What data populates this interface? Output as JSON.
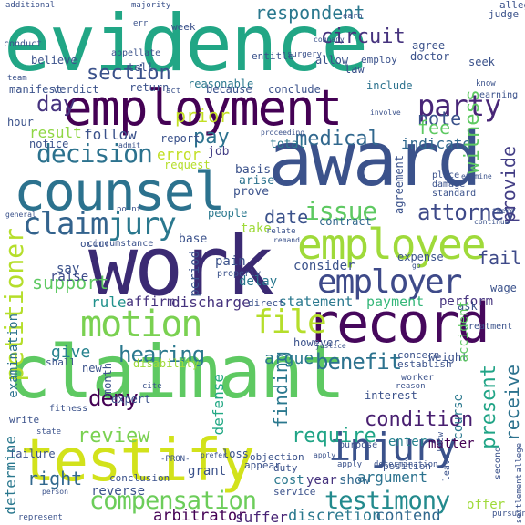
{
  "palette": {
    "purple": "#440154",
    "indigo": "#3b528b",
    "blue": "#31688e",
    "teal": "#21918c",
    "green": "#35b779",
    "lime": "#5ec962",
    "yellow": "#c8e020",
    "bright_yellow": "#fde725"
  },
  "words": [
    {
      "text": "evidence",
      "color": "#21a685"
    },
    {
      "text": "claimant",
      "color": "#5ec962"
    },
    {
      "text": "work",
      "color": "#3b2a73"
    },
    {
      "text": "award",
      "color": "#3b528b"
    },
    {
      "text": "employment",
      "color": "#440154"
    },
    {
      "text": "counsel",
      "color": "#2c728e"
    },
    {
      "text": "testify",
      "color": "#d2e21b"
    },
    {
      "text": "record",
      "color": "#46085c"
    },
    {
      "text": "employee",
      "color": "#9fda3a"
    },
    {
      "text": "employer",
      "color": "#3e4a89"
    },
    {
      "text": "injury",
      "color": "#3b528b"
    },
    {
      "text": "motion",
      "color": "#7ad151"
    },
    {
      "text": "claim",
      "color": "#33638d"
    },
    {
      "text": "jury",
      "color": "#2a788e"
    },
    {
      "text": "file",
      "color": "#b5de2b"
    },
    {
      "text": "party",
      "color": "#482677"
    },
    {
      "text": "decision",
      "color": "#2c728e"
    },
    {
      "text": "compensation",
      "color": "#6ccd5a"
    },
    {
      "text": "testimony",
      "color": "#238a8d"
    },
    {
      "text": "issue",
      "color": "#5ec962"
    },
    {
      "text": "attorney",
      "color": "#3e4a89"
    },
    {
      "text": "witness",
      "color": "#5ec962"
    },
    {
      "text": "petitioner",
      "color": "#b5de2b"
    },
    {
      "text": "support",
      "color": "#5ec962"
    },
    {
      "text": "hearing",
      "color": "#2a788e"
    },
    {
      "text": "benefit",
      "color": "#2c728e"
    },
    {
      "text": "deny",
      "color": "#440154"
    },
    {
      "text": "finding",
      "color": "#2a788e"
    },
    {
      "text": "present",
      "color": "#20a486"
    },
    {
      "text": "receive",
      "color": "#2c728e"
    },
    {
      "text": "review",
      "color": "#7ad151"
    },
    {
      "text": "condition",
      "color": "#481f70"
    },
    {
      "text": "require",
      "color": "#20a486"
    },
    {
      "text": "medical",
      "color": "#31688e"
    },
    {
      "text": "day",
      "color": "#46337e"
    },
    {
      "text": "section",
      "color": "#3b528b"
    },
    {
      "text": "circuit",
      "color": "#46337e"
    },
    {
      "text": "respondent",
      "color": "#2a788e"
    },
    {
      "text": "prior",
      "color": "#c2df23"
    },
    {
      "text": "note",
      "color": "#3b528b"
    },
    {
      "text": "fee",
      "color": "#5ec962"
    },
    {
      "text": "pay",
      "color": "#2c728e"
    },
    {
      "text": "provide",
      "color": "#433e85"
    },
    {
      "text": "date",
      "color": "#3b528b"
    },
    {
      "text": "fail",
      "color": "#3e4a89"
    },
    {
      "text": "right",
      "color": "#31688e"
    },
    {
      "text": "determine",
      "color": "#2a788e"
    },
    {
      "text": "rule",
      "color": "#21918c"
    },
    {
      "text": "give",
      "color": "#26828e"
    },
    {
      "text": "argue",
      "color": "#2a788e"
    },
    {
      "text": "arbitrator",
      "color": "#440154"
    },
    {
      "text": "suffer",
      "color": "#482475"
    },
    {
      "text": "discretion",
      "color": "#2a788e"
    },
    {
      "text": "contend",
      "color": "#31688e"
    },
    {
      "text": "result",
      "color": "#8fd744"
    },
    {
      "text": "follow",
      "color": "#3b528b"
    },
    {
      "text": "error",
      "color": "#c2df23"
    },
    {
      "text": "indicate",
      "color": "#31688e"
    },
    {
      "text": "discharge",
      "color": "#46337e"
    },
    {
      "text": "statement",
      "color": "#2a788e"
    },
    {
      "text": "payment",
      "color": "#35b779"
    },
    {
      "text": "argument",
      "color": "#2c728e"
    },
    {
      "text": "defense",
      "color": "#22a884"
    },
    {
      "text": "reverse",
      "color": "#3b528b"
    },
    {
      "text": "grant",
      "color": "#3b528b"
    },
    {
      "text": "cost",
      "color": "#2a788e"
    },
    {
      "text": "year",
      "color": "#46337e"
    },
    {
      "text": "show",
      "color": "#31688e"
    },
    {
      "text": "matter",
      "color": "#440154"
    },
    {
      "text": "enter",
      "color": "#26828e"
    },
    {
      "text": "course",
      "color": "#2a788e"
    },
    {
      "text": "offer",
      "color": "#9fda3a"
    },
    {
      "text": "consider",
      "color": "#3b528b"
    },
    {
      "text": "perform",
      "color": "#46337e"
    },
    {
      "text": "contract",
      "color": "#31688e"
    },
    {
      "text": "take",
      "color": "#9fda3a"
    },
    {
      "text": "period",
      "color": "#3b528b"
    },
    {
      "text": "pain",
      "color": "#3b528b"
    },
    {
      "text": "delay",
      "color": "#2a788e"
    },
    {
      "text": "affirm",
      "color": "#46337e"
    },
    {
      "text": "examination",
      "color": "#2c728e"
    },
    {
      "text": "raise",
      "color": "#3e4a89"
    },
    {
      "text": "say",
      "color": "#3b528b"
    },
    {
      "text": "base",
      "color": "#3b528b"
    },
    {
      "text": "people",
      "color": "#2a788e"
    },
    {
      "text": "basis",
      "color": "#3b528b"
    },
    {
      "text": "arise",
      "color": "#2c728e"
    },
    {
      "text": "prove",
      "color": "#3b528b"
    },
    {
      "text": "job",
      "color": "#433e85"
    },
    {
      "text": "report",
      "color": "#3b528b"
    },
    {
      "text": "total",
      "color": "#2a788e"
    },
    {
      "text": "request",
      "color": "#b5de2b"
    },
    {
      "text": "notice",
      "color": "#3b528b"
    },
    {
      "text": "hour",
      "color": "#3b528b"
    },
    {
      "text": "manifest",
      "color": "#3b528b"
    },
    {
      "text": "verdict",
      "color": "#3b528b"
    },
    {
      "text": "return",
      "color": "#3b528b"
    },
    {
      "text": "reasonable",
      "color": "#2a788e"
    },
    {
      "text": "because",
      "color": "#3b528b"
    },
    {
      "text": "conclude",
      "color": "#3b528b"
    },
    {
      "text": "include",
      "color": "#2c728e"
    },
    {
      "text": "tell",
      "color": "#3b528b"
    },
    {
      "text": "believe",
      "color": "#3b528b"
    },
    {
      "text": "conduct",
      "color": "#3b528b"
    },
    {
      "text": "week",
      "color": "#3b528b"
    },
    {
      "text": "entitle",
      "color": "#3b528b"
    },
    {
      "text": "allow",
      "color": "#3b528b"
    },
    {
      "text": "law",
      "color": "#3b528b"
    },
    {
      "text": "employ",
      "color": "#3b528b"
    },
    {
      "text": "agree",
      "color": "#3b528b"
    },
    {
      "text": "doctor",
      "color": "#3b528b"
    },
    {
      "text": "seek",
      "color": "#3b528b"
    },
    {
      "text": "judge",
      "color": "#3b528b"
    },
    {
      "text": "agreement",
      "color": "#3b528b"
    },
    {
      "text": "expense",
      "color": "#3b528b"
    },
    {
      "text": "wage",
      "color": "#3b528b"
    },
    {
      "text": "ask",
      "color": "#3b528b"
    },
    {
      "text": "accident",
      "color": "#5ec962"
    },
    {
      "text": "weight",
      "color": "#3b528b"
    },
    {
      "text": "disability",
      "color": "#9fda3a"
    },
    {
      "text": "however",
      "color": "#3b528b"
    },
    {
      "text": "concern",
      "color": "#3b528b"
    },
    {
      "text": "establish",
      "color": "#3b528b"
    },
    {
      "text": "month",
      "color": "#3b528b"
    },
    {
      "text": "new",
      "color": "#3b528b"
    },
    {
      "text": "expert",
      "color": "#3b528b"
    },
    {
      "text": "interest",
      "color": "#3b528b"
    },
    {
      "text": "shall",
      "color": "#3b528b"
    },
    {
      "text": "write",
      "color": "#3b528b"
    },
    {
      "text": "fitness",
      "color": "#3b528b"
    },
    {
      "text": "failure",
      "color": "#3b528b"
    },
    {
      "text": "loss",
      "color": "#3b528b"
    },
    {
      "text": "appear",
      "color": "#3b528b"
    },
    {
      "text": "duty",
      "color": "#3b528b"
    },
    {
      "text": "service",
      "color": "#3b528b"
    },
    {
      "text": "conclusion",
      "color": "#3b528b"
    },
    {
      "text": "objection",
      "color": "#3b528b"
    },
    {
      "text": "position",
      "color": "#3b528b"
    },
    {
      "text": "direct",
      "color": "#3b528b"
    },
    {
      "text": "properly",
      "color": "#3b528b"
    },
    {
      "text": "occur",
      "color": "#3b528b"
    },
    {
      "text": "circumstance",
      "color": "#3b528b"
    },
    {
      "text": "relate",
      "color": "#3b528b"
    },
    {
      "text": "remand",
      "color": "#3b528b"
    },
    {
      "text": "place",
      "color": "#3b528b"
    },
    {
      "text": "damage",
      "color": "#3b528b"
    },
    {
      "text": "standard",
      "color": "#3b528b"
    },
    {
      "text": "worker",
      "color": "#3b528b"
    },
    {
      "text": "reason",
      "color": "#3b528b"
    },
    {
      "text": "settlement",
      "color": "#3b528b"
    },
    {
      "text": "treatment",
      "color": "#3b528b"
    },
    {
      "text": "earning",
      "color": "#3b528b"
    },
    {
      "text": "know",
      "color": "#3b528b"
    },
    {
      "text": "second",
      "color": "#3b528b"
    },
    {
      "text": "purpose",
      "color": "#3b528b"
    },
    {
      "text": "leave",
      "color": "#3b528b"
    },
    {
      "text": "allege",
      "color": "#3b528b"
    },
    {
      "text": "appellate",
      "color": "#3b528b"
    },
    {
      "text": "err",
      "color": "#3b528b"
    },
    {
      "text": "surgery",
      "color": "#3b528b"
    },
    {
      "text": "company",
      "color": "#3b528b"
    },
    {
      "text": "earn",
      "color": "#3b528b"
    },
    {
      "text": "majority",
      "color": "#3b528b"
    },
    {
      "text": "additional",
      "color": "#3b528b"
    },
    {
      "text": "admit",
      "color": "#3b528b"
    },
    {
      "text": "point",
      "color": "#3b528b"
    },
    {
      "text": "continue",
      "color": "#3b528b"
    },
    {
      "text": "involve",
      "color": "#3b528b"
    },
    {
      "text": "general",
      "color": "#3b528b"
    },
    {
      "text": "state",
      "color": "#3b528b"
    },
    {
      "text": "cite",
      "color": "#3b528b"
    },
    {
      "text": "act",
      "color": "#3b528b"
    },
    {
      "text": "proceeding",
      "color": "#3b528b"
    },
    {
      "text": "examine",
      "color": "#3b528b"
    },
    {
      "text": "go",
      "color": "#3b528b"
    },
    {
      "text": "justice",
      "color": "#3b528b"
    },
    {
      "text": "determination",
      "color": "#3b528b"
    },
    {
      "text": "-PRON-",
      "color": "#3b528b"
    },
    {
      "text": "apply",
      "color": "#3b528b"
    },
    {
      "text": "represent",
      "color": "#3b528b"
    },
    {
      "text": "person",
      "color": "#3b528b"
    },
    {
      "text": "prefer",
      "color": "#3b528b"
    },
    {
      "text": "there",
      "color": "#3b528b"
    },
    {
      "text": "team",
      "color": "#3b528b"
    },
    {
      "text": "pursuant",
      "color": "#3b528b"
    },
    {
      "text": "refuse",
      "color": "#3b528b"
    },
    {
      "text": "cause",
      "color": "#3b528b"
    },
    {
      "text": "hold",
      "color": "#3b528b"
    },
    {
      "text": "set",
      "color": "#3b528b"
    }
  ]
}
